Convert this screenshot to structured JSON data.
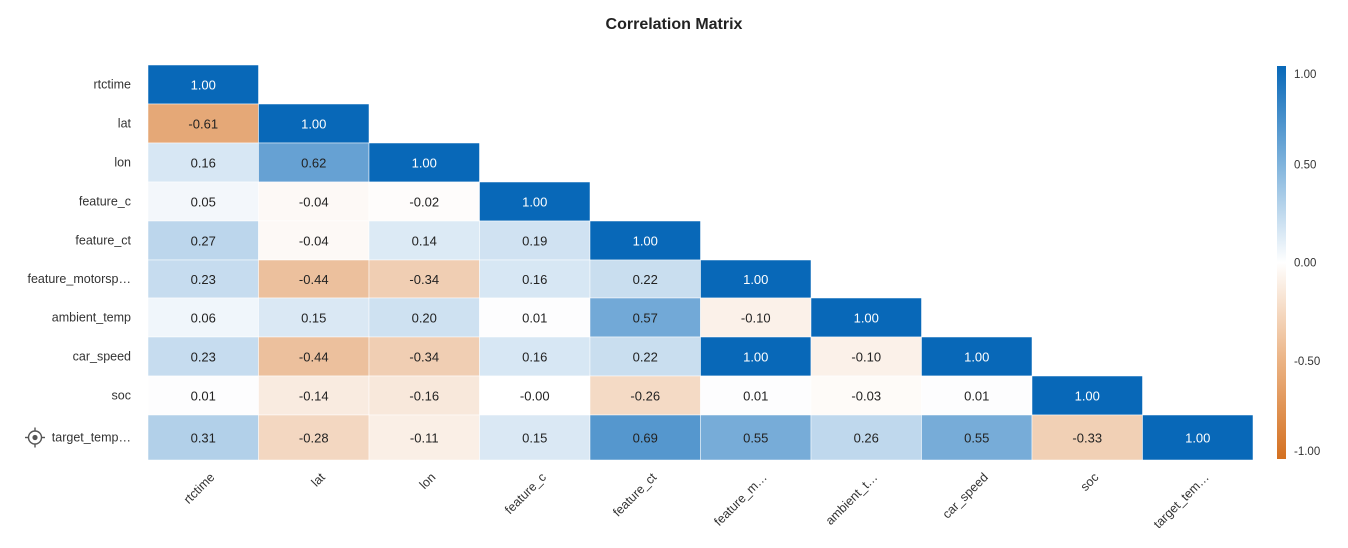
{
  "chart_data": {
    "type": "heatmap",
    "title": "Correlation Matrix",
    "row_labels": [
      "rtctime",
      "lat",
      "lon",
      "feature_c",
      "feature_ct",
      "feature_motorsp…",
      "ambient_temp",
      "car_speed",
      "soc",
      "target_temp…"
    ],
    "col_labels": [
      "rtctime",
      "lat",
      "lon",
      "feature_c",
      "feature_ct",
      "feature_m…",
      "ambient_t…",
      "car_speed",
      "soc",
      "target_tem…"
    ],
    "target_row_icon": "target-icon",
    "values": [
      [
        "1.00"
      ],
      [
        "-0.61",
        "1.00"
      ],
      [
        "0.16",
        "0.62",
        "1.00"
      ],
      [
        "0.05",
        "-0.04",
        "-0.02",
        "1.00"
      ],
      [
        "0.27",
        "-0.04",
        "0.14",
        "0.19",
        "1.00"
      ],
      [
        "0.23",
        "-0.44",
        "-0.34",
        "0.16",
        "0.22",
        "1.00"
      ],
      [
        "0.06",
        "0.15",
        "0.20",
        "0.01",
        "0.57",
        "-0.10",
        "1.00"
      ],
      [
        "0.23",
        "-0.44",
        "-0.34",
        "0.16",
        "0.22",
        "1.00",
        "-0.10",
        "1.00"
      ],
      [
        "0.01",
        "-0.14",
        "-0.16",
        "-0.00",
        "-0.26",
        "0.01",
        "-0.03",
        "0.01",
        "1.00"
      ],
      [
        "0.31",
        "-0.28",
        "-0.11",
        "0.15",
        "0.69",
        "0.55",
        "0.26",
        "0.55",
        "-0.33",
        "1.00"
      ]
    ],
    "colorbar": {
      "range": [
        -1,
        1
      ],
      "ticks": [
        "1.00",
        "0.50",
        "0.00",
        "-0.50",
        "-1.00"
      ],
      "colors": {
        "positive": "#0868b8",
        "zero": "#ffffff",
        "negative": "#d47020"
      }
    }
  }
}
